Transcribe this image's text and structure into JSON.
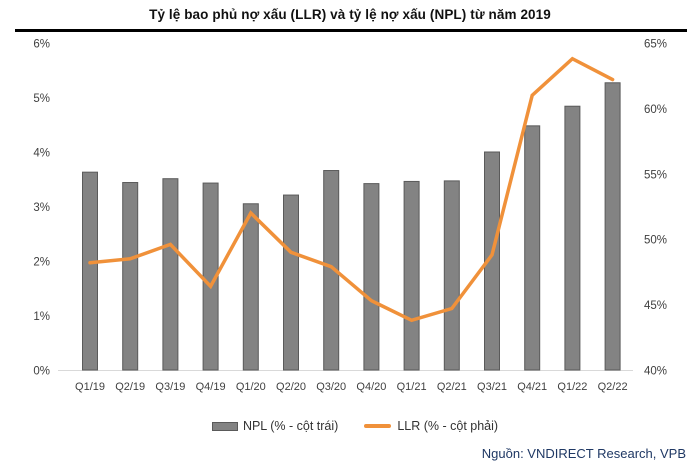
{
  "title": "Tỷ lệ bao phủ nợ xấu (LLR) và tỷ lệ nợ xấu (NPL) từ năm 2019",
  "source": "Nguồn: VNDIRECT Research, VPB",
  "legend": {
    "npl_label": "NPL (% - cột trái)",
    "llr_label": "LLR (% - cột phải)"
  },
  "colors": {
    "bar_fill": "#838383",
    "bar_border": "#5A5A5A",
    "line": "#F0913A",
    "axis_text": "#404040",
    "baseline": "#D9D9D9",
    "title_rule": "#000000",
    "source_text": "#1F3864"
  },
  "chart_data": {
    "type": "bar",
    "subtype": "bar+line combo, dual axis",
    "title": "Tỷ lệ bao phủ nợ xấu (LLR) và tỷ lệ nợ xấu (NPL) từ năm 2019",
    "categories": [
      "Q1/19",
      "Q2/19",
      "Q3/19",
      "Q4/19",
      "Q1/20",
      "Q2/20",
      "Q3/20",
      "Q4/20",
      "Q1/21",
      "Q2/21",
      "Q3/21",
      "Q4/21",
      "Q1/22",
      "Q2/22"
    ],
    "series": [
      {
        "name": "NPL (% - cột trái)",
        "type": "bar",
        "axis": "left",
        "values": [
          3.63,
          3.44,
          3.51,
          3.43,
          3.05,
          3.21,
          3.66,
          3.42,
          3.46,
          3.47,
          4.0,
          4.48,
          4.84,
          5.27
        ]
      },
      {
        "name": "LLR (% - cột phải)",
        "type": "line",
        "axis": "right",
        "values": [
          48.2,
          48.5,
          49.6,
          46.4,
          52.0,
          49.0,
          47.9,
          45.3,
          43.8,
          44.7,
          48.8,
          61.0,
          63.8,
          62.2
        ]
      }
    ],
    "left_axis": {
      "min": 0,
      "max": 6,
      "tick_labels": [
        "6%",
        "5%",
        "4%",
        "3%",
        "2%",
        "1%",
        "0%"
      ]
    },
    "right_axis": {
      "min": 40,
      "max": 65,
      "tick_labels": [
        "65%",
        "60%",
        "55%",
        "50%",
        "45%",
        "40%"
      ]
    },
    "grid": false,
    "legend_position": "bottom"
  }
}
